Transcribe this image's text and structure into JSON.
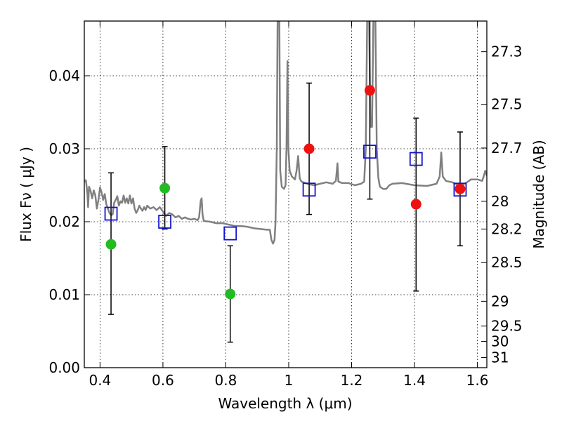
{
  "chart_data": {
    "type": "scatter",
    "xlabel": "Wavelength  λ (μm)",
    "ylabel": "Flux  Fν  ( μJy )",
    "ylabel_right": "Magnitude (AB)",
    "xlim": [
      0.35,
      1.63
    ],
    "ylim": [
      0.0,
      0.0475
    ],
    "x_ticks": [
      0.4,
      0.6,
      0.8,
      1.0,
      1.2,
      1.4,
      1.6
    ],
    "x_tick_labels": [
      "0.4",
      "0.6",
      "0.8",
      "1",
      "1.2",
      "1.4",
      "1.6"
    ],
    "y_ticks": [
      0.0,
      0.01,
      0.02,
      0.03,
      0.04
    ],
    "y_tick_labels": [
      "0.00",
      "0.01",
      "0.02",
      "0.03",
      "0.04"
    ],
    "right_ticks": [
      {
        "label": "27.3",
        "flux": 0.0433
      },
      {
        "label": "27.5",
        "flux": 0.0361
      },
      {
        "label": "27.7",
        "flux": 0.0301
      },
      {
        "label": "28",
        "flux": 0.0228
      },
      {
        "label": "28.2",
        "flux": 0.019
      },
      {
        "label": "28.5",
        "flux": 0.0144
      },
      {
        "label": "29",
        "flux": 0.0091
      },
      {
        "label": "29.5",
        "flux": 0.0057
      },
      {
        "label": "30",
        "flux": 0.0036
      },
      {
        "label": "31",
        "flux": 0.0014
      }
    ],
    "grid": true,
    "colors": {
      "model": "#808080",
      "optical": "#22bb22",
      "infrared": "#ee1111",
      "model_box": "#1111cc",
      "errorbar": "#000000"
    },
    "series": [
      {
        "kind": "model-spectrum",
        "points": [
          [
            0.35,
            0.0255
          ],
          [
            0.355,
            0.0257
          ],
          [
            0.36,
            0.0238
          ],
          [
            0.362,
            0.022
          ],
          [
            0.365,
            0.0248
          ],
          [
            0.37,
            0.0242
          ],
          [
            0.375,
            0.0232
          ],
          [
            0.38,
            0.0243
          ],
          [
            0.385,
            0.0236
          ],
          [
            0.39,
            0.0218
          ],
          [
            0.395,
            0.023
          ],
          [
            0.4,
            0.0247
          ],
          [
            0.405,
            0.024
          ],
          [
            0.41,
            0.023
          ],
          [
            0.415,
            0.0238
          ],
          [
            0.42,
            0.0224
          ],
          [
            0.425,
            0.0218
          ],
          [
            0.43,
            0.0212
          ],
          [
            0.435,
            0.0209
          ],
          [
            0.44,
            0.021
          ],
          [
            0.445,
            0.0226
          ],
          [
            0.45,
            0.023
          ],
          [
            0.455,
            0.0235
          ],
          [
            0.46,
            0.0222
          ],
          [
            0.465,
            0.0228
          ],
          [
            0.47,
            0.0226
          ],
          [
            0.475,
            0.0236
          ],
          [
            0.48,
            0.0226
          ],
          [
            0.485,
            0.0232
          ],
          [
            0.49,
            0.0225
          ],
          [
            0.495,
            0.0236
          ],
          [
            0.5,
            0.0225
          ],
          [
            0.505,
            0.0232
          ],
          [
            0.51,
            0.0218
          ],
          [
            0.515,
            0.0212
          ],
          [
            0.52,
            0.0216
          ],
          [
            0.525,
            0.0222
          ],
          [
            0.53,
            0.0218
          ],
          [
            0.535,
            0.0215
          ],
          [
            0.54,
            0.022
          ],
          [
            0.545,
            0.0216
          ],
          [
            0.55,
            0.0222
          ],
          [
            0.56,
            0.0218
          ],
          [
            0.57,
            0.022
          ],
          [
            0.58,
            0.0216
          ],
          [
            0.59,
            0.022
          ],
          [
            0.6,
            0.0214
          ],
          [
            0.61,
            0.0208
          ],
          [
            0.62,
            0.0212
          ],
          [
            0.63,
            0.021
          ],
          [
            0.64,
            0.0206
          ],
          [
            0.65,
            0.0208
          ],
          [
            0.66,
            0.0204
          ],
          [
            0.67,
            0.0206
          ],
          [
            0.68,
            0.0204
          ],
          [
            0.69,
            0.0203
          ],
          [
            0.7,
            0.0204
          ],
          [
            0.71,
            0.0202
          ],
          [
            0.715,
            0.0206
          ],
          [
            0.72,
            0.0228
          ],
          [
            0.723,
            0.0232
          ],
          [
            0.726,
            0.021
          ],
          [
            0.73,
            0.0201
          ],
          [
            0.75,
            0.02
          ],
          [
            0.77,
            0.0198
          ],
          [
            0.79,
            0.0198
          ],
          [
            0.81,
            0.0196
          ],
          [
            0.83,
            0.0194
          ],
          [
            0.85,
            0.0194
          ],
          [
            0.87,
            0.0193
          ],
          [
            0.89,
            0.0191
          ],
          [
            0.91,
            0.019
          ],
          [
            0.93,
            0.0189
          ],
          [
            0.94,
            0.0189
          ],
          [
            0.945,
            0.0175
          ],
          [
            0.95,
            0.017
          ],
          [
            0.955,
            0.0175
          ],
          [
            0.958,
            0.02
          ],
          [
            0.962,
            0.03
          ],
          [
            0.965,
            0.05
          ],
          [
            0.97,
            0.05
          ],
          [
            0.973,
            0.027
          ],
          [
            0.978,
            0.0248
          ],
          [
            0.985,
            0.0245
          ],
          [
            0.99,
            0.025
          ],
          [
            0.993,
            0.03
          ],
          [
            0.996,
            0.042
          ],
          [
            0.999,
            0.03
          ],
          [
            1.003,
            0.027
          ],
          [
            1.01,
            0.0262
          ],
          [
            1.02,
            0.0258
          ],
          [
            1.025,
            0.027
          ],
          [
            1.03,
            0.029
          ],
          [
            1.035,
            0.026
          ],
          [
            1.04,
            0.0255
          ],
          [
            1.06,
            0.0252
          ],
          [
            1.08,
            0.025
          ],
          [
            1.1,
            0.0252
          ],
          [
            1.12,
            0.0254
          ],
          [
            1.14,
            0.0252
          ],
          [
            1.15,
            0.0256
          ],
          [
            1.155,
            0.028
          ],
          [
            1.158,
            0.0255
          ],
          [
            1.17,
            0.0253
          ],
          [
            1.19,
            0.0253
          ],
          [
            1.21,
            0.025
          ],
          [
            1.23,
            0.0252
          ],
          [
            1.24,
            0.0255
          ],
          [
            1.245,
            0.03
          ],
          [
            1.25,
            0.05
          ],
          [
            1.255,
            0.05
          ],
          [
            1.26,
            0.033
          ],
          [
            1.265,
            0.033
          ],
          [
            1.27,
            0.05
          ],
          [
            1.275,
            0.05
          ],
          [
            1.28,
            0.03
          ],
          [
            1.285,
            0.026
          ],
          [
            1.29,
            0.0248
          ],
          [
            1.3,
            0.0245
          ],
          [
            1.31,
            0.0245
          ],
          [
            1.32,
            0.025
          ],
          [
            1.33,
            0.0252
          ],
          [
            1.36,
            0.0253
          ],
          [
            1.4,
            0.025
          ],
          [
            1.44,
            0.0249
          ],
          [
            1.47,
            0.0252
          ],
          [
            1.48,
            0.0262
          ],
          [
            1.485,
            0.0295
          ],
          [
            1.49,
            0.0262
          ],
          [
            1.5,
            0.0256
          ],
          [
            1.52,
            0.0254
          ],
          [
            1.54,
            0.025
          ],
          [
            1.56,
            0.0252
          ],
          [
            1.58,
            0.0258
          ],
          [
            1.6,
            0.0258
          ],
          [
            1.615,
            0.0256
          ],
          [
            1.62,
            0.0262
          ],
          [
            1.625,
            0.027
          ],
          [
            1.63,
            0.0263
          ]
        ]
      },
      {
        "kind": "optical-photometry",
        "points": [
          {
            "x": 0.435,
            "y": 0.0169,
            "yerr_low": 0.0073,
            "yerr_high": 0.0267
          },
          {
            "x": 0.606,
            "y": 0.0246,
            "yerr_low": 0.019,
            "yerr_high": 0.0303
          },
          {
            "x": 0.814,
            "y": 0.0101,
            "yerr_low": 0.0035,
            "yerr_high": 0.0167
          }
        ]
      },
      {
        "kind": "infrared-photometry",
        "points": [
          {
            "x": 1.065,
            "y": 0.03,
            "yerr_low": 0.021,
            "yerr_high": 0.039
          },
          {
            "x": 1.258,
            "y": 0.038,
            "yerr_low": 0.0231,
            "yerr_high": 0.05
          },
          {
            "x": 1.405,
            "y": 0.0224,
            "yerr_low": 0.0105,
            "yerr_high": 0.0342
          },
          {
            "x": 1.545,
            "y": 0.0245,
            "yerr_low": 0.0167,
            "yerr_high": 0.0323
          }
        ]
      },
      {
        "kind": "model-bandpass-flux",
        "points": [
          {
            "x": 0.435,
            "y": 0.0211
          },
          {
            "x": 0.606,
            "y": 0.02
          },
          {
            "x": 0.814,
            "y": 0.0184
          },
          {
            "x": 1.065,
            "y": 0.0244
          },
          {
            "x": 1.258,
            "y": 0.0296
          },
          {
            "x": 1.405,
            "y": 0.0286
          },
          {
            "x": 1.545,
            "y": 0.0244
          }
        ]
      }
    ]
  }
}
